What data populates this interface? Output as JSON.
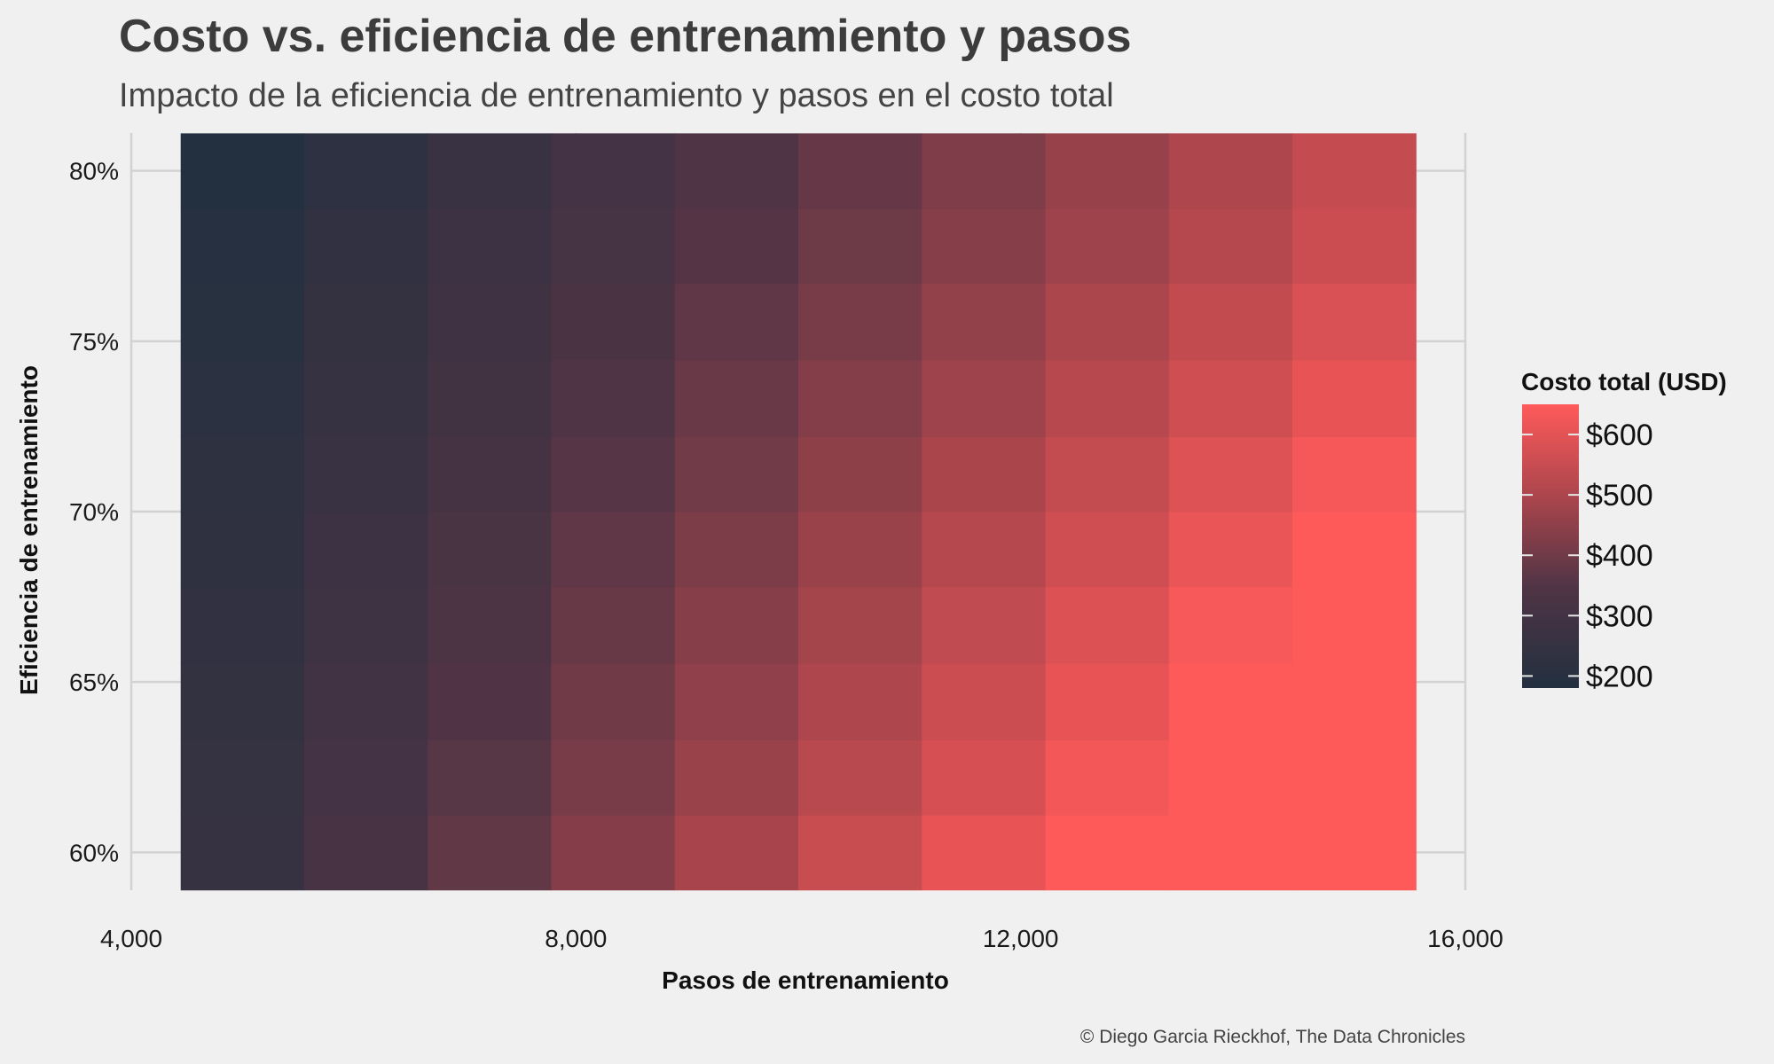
{
  "chart_data": {
    "type": "heatmap",
    "title": "Costo vs. eficiencia de entrenamiento y pasos",
    "subtitle": "Impacto de la eficiencia de entrenamiento y pasos en el costo total",
    "xlabel": "Pasos de entrenamiento",
    "ylabel": "Eficiencia de entrenamiento",
    "caption": "© Diego Garcia Rieckhof, The Data Chronicles",
    "x": [
      5000,
      6111,
      7222,
      8333,
      9444,
      10556,
      11667,
      12778,
      13889,
      15000
    ],
    "y": [
      0.6,
      0.622,
      0.644,
      0.667,
      0.689,
      0.711,
      0.733,
      0.756,
      0.778,
      0.8
    ],
    "xlim": [
      4000,
      16000
    ],
    "ylim": [
      0.5889,
      0.8111
    ],
    "x_ticks": [
      4000,
      8000,
      12000,
      16000
    ],
    "x_tick_labels": [
      "4,000",
      "8,000",
      "12,000",
      "16,000"
    ],
    "y_ticks": [
      0.6,
      0.65,
      0.7,
      0.75,
      0.8
    ],
    "y_tick_labels": [
      "60%",
      "65%",
      "70%",
      "75%",
      "80%"
    ],
    "values": [
      [
        260,
        318,
        376,
        434,
        492,
        550,
        608,
        666,
        724,
        780
      ],
      [
        252,
        306,
        360,
        414,
        468,
        522,
        576,
        630,
        684,
        738
      ],
      [
        244,
        296,
        348,
        400,
        452,
        504,
        556,
        608,
        660,
        712
      ],
      [
        236,
        286,
        336,
        386,
        436,
        486,
        536,
        586,
        636,
        686
      ],
      [
        228,
        276,
        324,
        372,
        420,
        468,
        516,
        564,
        612,
        660
      ],
      [
        220,
        266,
        312,
        358,
        404,
        450,
        496,
        542,
        588,
        634
      ],
      [
        212,
        256,
        300,
        344,
        388,
        432,
        476,
        520,
        564,
        608
      ],
      [
        204,
        246,
        288,
        330,
        372,
        414,
        456,
        498,
        540,
        582
      ],
      [
        196,
        236,
        276,
        316,
        356,
        396,
        436,
        476,
        516,
        556
      ],
      [
        180,
        224,
        264,
        304,
        344,
        384,
        424,
        464,
        504,
        544
      ]
    ],
    "colorbar": {
      "title": "Costo total (USD)",
      "min": 180,
      "max": 650,
      "low_color": "#22303f",
      "high_color": "#ff5a5a",
      "ticks": [
        200,
        300,
        400,
        500,
        600
      ],
      "tick_labels": [
        "$200",
        "$300",
        "$400",
        "$500",
        "$600"
      ]
    },
    "grid": true,
    "legend_position": "right"
  }
}
